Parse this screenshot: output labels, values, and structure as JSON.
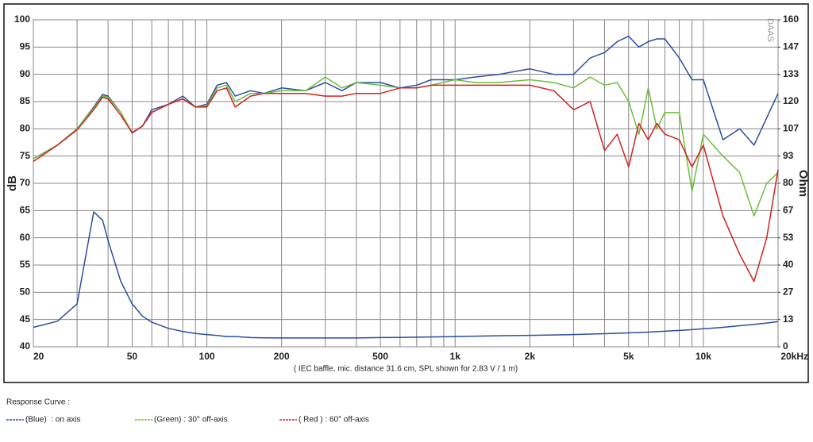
{
  "chart_data": {
    "type": "line",
    "xscale": "log",
    "ylabel": "dB",
    "y2label": "Ohm",
    "annotation": "( IEC baffle, mic. distance 31.6 cm, SPL shown for 2.83 V / 1 m)",
    "watermark": "DAAS",
    "legend_title": "Response Curve :",
    "xlim": [
      20,
      20000
    ],
    "xticks": [
      20,
      50,
      100,
      200,
      500,
      {
        "value": 1000,
        "label": "1k"
      },
      {
        "value": 2000,
        "label": "2k"
      },
      {
        "value": 5000,
        "label": "5k"
      },
      {
        "value": 10000,
        "label": "10k"
      },
      {
        "value": 20000,
        "label": "20kHz"
      }
    ],
    "xgrid": [
      20,
      30,
      40,
      50,
      60,
      70,
      80,
      90,
      100,
      200,
      300,
      400,
      500,
      600,
      700,
      800,
      900,
      1000,
      2000,
      3000,
      4000,
      5000,
      6000,
      7000,
      8000,
      9000,
      10000,
      20000
    ],
    "ylim": [
      40,
      100
    ],
    "yticks": [
      40,
      45,
      50,
      55,
      60,
      65,
      70,
      75,
      80,
      85,
      90,
      95,
      100
    ],
    "y2lim": [
      0,
      160
    ],
    "y2ticks": [
      0,
      {
        "value": 13.33,
        "label": "13"
      },
      {
        "value": 26.67,
        "label": "27"
      },
      40,
      {
        "value": 53.33,
        "label": "53"
      },
      {
        "value": 66.67,
        "label": "67"
      },
      80,
      {
        "value": 93.33,
        "label": "93"
      },
      {
        "value": 106.67,
        "label": "107"
      },
      120,
      {
        "value": 133.33,
        "label": "133"
      },
      {
        "value": 146.67,
        "label": "147"
      },
      160
    ],
    "grid": true,
    "x": [
      20,
      25,
      30,
      35,
      38,
      40,
      45,
      50,
      55,
      60,
      70,
      80,
      90,
      100,
      110,
      120,
      130,
      150,
      170,
      200,
      250,
      300,
      350,
      400,
      500,
      600,
      700,
      800,
      1000,
      1200,
      1500,
      2000,
      2500,
      3000,
      3500,
      4000,
      4500,
      5000,
      5500,
      6000,
      6500,
      7000,
      8000,
      9000,
      10000,
      12000,
      14000,
      16000,
      18000,
      20000
    ],
    "series": [
      {
        "name": "(Blue)  : on axis",
        "color": "#2b4ea0",
        "values": [
          74.5,
          77,
          80,
          84,
          86.3,
          86,
          83,
          79.2,
          80.5,
          83.5,
          84.5,
          86,
          84,
          84.5,
          88,
          88.5,
          86,
          87,
          86.5,
          87.5,
          87,
          88.5,
          87,
          88.5,
          88.5,
          87.5,
          88,
          89,
          89,
          89.5,
          90,
          91,
          90,
          90,
          93,
          94,
          96,
          97,
          95,
          96,
          96.5,
          96.5,
          93,
          89,
          89,
          78,
          80,
          77,
          82,
          86.5
        ]
      },
      {
        "name": "(Green) : 30° off-axis",
        "color": "#6bbf3a",
        "values": [
          74.5,
          77,
          80,
          83.8,
          86,
          85.8,
          83,
          79.3,
          80.5,
          83,
          84.5,
          85.5,
          84,
          84.2,
          87.5,
          88,
          85,
          86.5,
          86.5,
          87,
          87,
          89.5,
          87.5,
          88.5,
          88,
          87.5,
          87.5,
          88,
          89,
          88.5,
          88.5,
          89,
          88.5,
          87.5,
          89.5,
          88,
          88.5,
          85,
          79,
          87.5,
          80,
          83,
          83,
          68.5,
          79,
          75,
          72,
          64,
          70,
          72
        ]
      },
      {
        "name": "( Red ) : 60° off-axis",
        "color": "#d42020",
        "values": [
          74,
          77,
          79.8,
          83.5,
          85.8,
          85.5,
          82.5,
          79.3,
          80.5,
          83,
          84.5,
          85.5,
          84,
          84,
          87,
          87.5,
          84,
          86,
          86.5,
          86.5,
          86.5,
          86,
          86,
          86.5,
          86.5,
          87.5,
          87.5,
          88,
          88,
          88,
          88,
          88,
          87,
          83.5,
          85,
          76,
          79,
          73,
          81,
          78,
          81,
          79,
          78,
          73,
          77,
          64,
          57,
          52,
          60,
          72.5
        ]
      },
      {
        "color": "#2b4ea0",
        "axis": "y2",
        "values": [
          9.5,
          12.5,
          21,
          66,
          62,
          52,
          32,
          21,
          15,
          12,
          9,
          7.5,
          6.5,
          6,
          5.5,
          5,
          5,
          4.5,
          4.4,
          4.3,
          4.3,
          4.3,
          4.3,
          4.3,
          4.5,
          4.6,
          4.7,
          4.8,
          5,
          5.2,
          5.4,
          5.6,
          5.8,
          6,
          6.2,
          6.4,
          6.6,
          6.8,
          7,
          7.2,
          7.4,
          7.6,
          8,
          8.4,
          8.8,
          9.5,
          10.3,
          11,
          11.6,
          12.3
        ]
      }
    ]
  }
}
